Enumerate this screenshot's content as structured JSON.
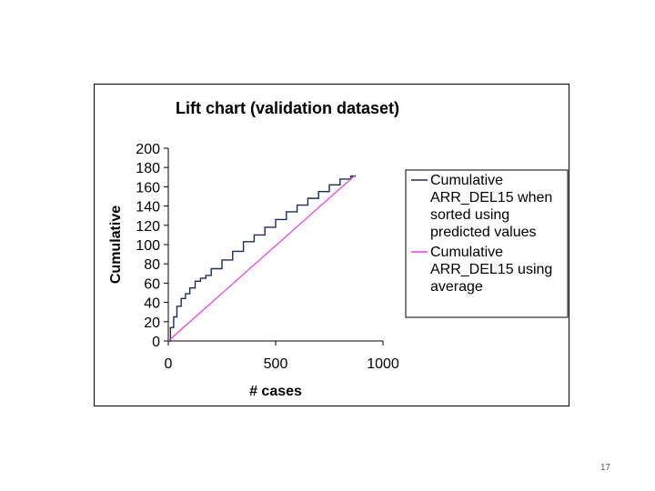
{
  "slide": {
    "page_number": "17"
  },
  "chart_data": {
    "type": "line",
    "title": "Lift chart (validation dataset)",
    "xlabel": "# cases",
    "ylabel": "Cumulative",
    "xlim": [
      0,
      1000
    ],
    "ylim": [
      0,
      200
    ],
    "x_ticks": [
      "0",
      "500",
      "1000"
    ],
    "y_ticks": [
      "0",
      "20",
      "40",
      "60",
      "80",
      "100",
      "120",
      "140",
      "160",
      "180",
      "200"
    ],
    "grid": false,
    "legend_position": "right",
    "series": [
      {
        "name": "Cumulative ARR_DEL15 when sorted using predicted values",
        "legend_lines": [
          "Cumulative",
          "ARR_DEL15 when",
          "sorted using",
          "predicted values"
        ],
        "color": "#1f2a5c",
        "x": [
          0,
          10,
          25,
          40,
          60,
          80,
          100,
          125,
          150,
          175,
          200,
          250,
          300,
          350,
          400,
          450,
          500,
          550,
          600,
          650,
          700,
          750,
          800,
          850,
          870
        ],
        "y": [
          0,
          14,
          25,
          36,
          44,
          49,
          55,
          62,
          65,
          68,
          75,
          84,
          93,
          103,
          110,
          118,
          126,
          134,
          141,
          148,
          155,
          162,
          168,
          171,
          172
        ]
      },
      {
        "name": "Cumulative ARR_DEL15 using average",
        "legend_lines": [
          "Cumulative",
          "ARR_DEL15 using",
          "average"
        ],
        "color": "#e040e0",
        "x": [
          0,
          870
        ],
        "y": [
          0,
          172
        ]
      }
    ]
  }
}
